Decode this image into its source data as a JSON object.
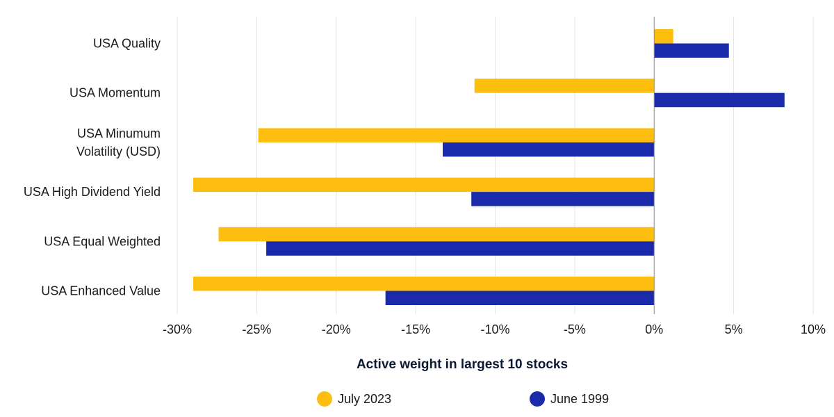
{
  "chart_data": {
    "type": "bar",
    "orientation": "horizontal",
    "categories": [
      "USA Quality",
      "USA Momentum",
      "USA Minumum Volatility (USD)",
      "USA High Dividend Yield",
      "USA Equal Weighted",
      "USA Enhanced Value"
    ],
    "category_lines": [
      [
        "USA Quality"
      ],
      [
        "USA Momentum"
      ],
      [
        "USA Minumum",
        "Volatility (USD)"
      ],
      [
        "USA High Dividend Yield"
      ],
      [
        "USA Equal Weighted"
      ],
      [
        "USA Enhanced Value"
      ]
    ],
    "series": [
      {
        "name": "July 2023",
        "color": "#FDBE10",
        "values": [
          1.2,
          -11.3,
          -24.9,
          -29.0,
          -27.4,
          -29.0
        ]
      },
      {
        "name": "June 1999",
        "color": "#1A2AAA",
        "values": [
          4.7,
          8.2,
          -13.3,
          -11.5,
          -24.4,
          -16.9
        ]
      }
    ],
    "xlabel": "Active weight in largest 10 stocks",
    "xlim": [
      -30,
      10
    ],
    "xticks": [
      -30,
      -25,
      -20,
      -15,
      -10,
      -5,
      0,
      5,
      10
    ],
    "tick_suffix": "%",
    "grid": "vertical",
    "legend_position": "bottom"
  }
}
